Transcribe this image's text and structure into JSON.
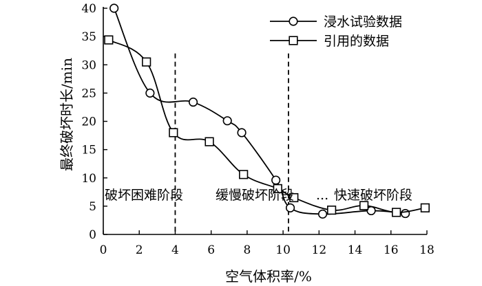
{
  "chart_data": {
    "type": "line",
    "title": "",
    "xlabel": "空气体积率/%",
    "ylabel": "最终破坏时长/min",
    "xlim": [
      0,
      18
    ],
    "ylim": [
      0,
      40
    ],
    "xticks": [
      "0",
      "2",
      "4",
      "6",
      "8",
      "10",
      "12",
      "14",
      "16",
      "18"
    ],
    "yticks": [
      "0",
      "5",
      "10",
      "15",
      "20",
      "25",
      "30",
      "35",
      "40"
    ],
    "grid": false,
    "legend_position": "top-right",
    "series": [
      {
        "name": "浸水试验数据",
        "marker": "circle",
        "color": "#000000",
        "points": [
          [
            0.6,
            40
          ],
          [
            2.6,
            25
          ],
          [
            5.0,
            23.4
          ],
          [
            6.9,
            20.1
          ],
          [
            7.7,
            18
          ],
          [
            9.6,
            9.6
          ],
          [
            10.4,
            4.7
          ],
          [
            12.2,
            3.6
          ],
          [
            14.9,
            4.2
          ],
          [
            16.8,
            3.7
          ]
        ]
      },
      {
        "name": "引用的数据",
        "marker": "square",
        "color": "#000000",
        "points": [
          [
            0.3,
            34.4
          ],
          [
            2.4,
            30.5
          ],
          [
            3.9,
            18
          ],
          [
            5.9,
            16.4
          ],
          [
            7.8,
            10.6
          ],
          [
            9.7,
            8.1
          ],
          [
            10.6,
            6.5
          ],
          [
            12.7,
            4.3
          ],
          [
            14.5,
            5.1
          ],
          [
            16.3,
            3.9
          ],
          [
            17.9,
            4.7
          ]
        ]
      }
    ],
    "stage_dividers": [
      4,
      10.3
    ],
    "stage_labels": [
      "破坏困难阶段",
      "缓慢破坏阶段",
      "快速破坏阶段"
    ],
    "stage_separator": "..."
  }
}
